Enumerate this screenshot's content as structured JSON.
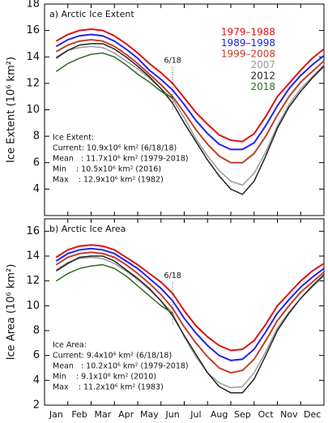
{
  "chart_data": [
    {
      "type": "line",
      "title": "a) Arctic Ice Extent",
      "y_label": "Ice Extent (10⁶ km²)",
      "ylim": [
        2,
        18
      ],
      "yticks": [
        4,
        6,
        8,
        10,
        12,
        14,
        16,
        18
      ],
      "legend": "top right",
      "marker_label": "6/18",
      "annotation": [
        "Ice Extent:",
        "Current: 10.9x10⁶ km² (6/18/18)",
        "Mean   : 11.7x10⁶ km² (1979-2018)",
        "Min    : 10.5x10⁶ km² (2016)",
        "Max    : 12.9x10⁶ km² (1982)"
      ],
      "series": [
        {
          "name": "1979–1988",
          "color": "#e01010",
          "values": [
            15.2,
            15.7,
            16.0,
            16.1,
            16.0,
            15.6,
            15.0,
            14.3,
            13.5,
            12.8,
            12.0,
            10.9,
            9.8,
            8.9,
            8.1,
            7.7,
            7.6,
            8.2,
            9.5,
            11.0,
            12.0,
            13.0,
            13.9,
            14.6
          ]
        },
        {
          "name": "1989–1998",
          "color": "#2323ee",
          "values": [
            14.8,
            15.3,
            15.6,
            15.7,
            15.6,
            15.2,
            14.6,
            13.9,
            13.0,
            12.3,
            11.5,
            10.4,
            9.2,
            8.2,
            7.4,
            7.0,
            7.0,
            7.5,
            8.8,
            10.3,
            11.6,
            12.6,
            13.4,
            14.1
          ]
        },
        {
          "name": "1999–2008",
          "color": "#c0402a",
          "values": [
            14.4,
            14.9,
            15.2,
            15.3,
            15.2,
            14.8,
            14.2,
            13.5,
            12.7,
            11.9,
            11.0,
            9.8,
            8.5,
            7.4,
            6.5,
            6.0,
            6.0,
            6.7,
            8.0,
            9.6,
            11.0,
            12.1,
            12.9,
            13.7
          ]
        },
        {
          "name": "2007",
          "color": "#9a9a9a",
          "values": [
            14.0,
            14.5,
            14.7,
            14.8,
            14.7,
            14.3,
            13.7,
            13.1,
            12.4,
            11.6,
            10.8,
            9.4,
            7.8,
            6.5,
            5.4,
            4.6,
            4.3,
            5.2,
            6.8,
            8.8,
            10.4,
            11.6,
            12.5,
            13.4
          ]
        },
        {
          "name": "2012",
          "color": "#222222",
          "values": [
            13.9,
            14.5,
            14.9,
            15.0,
            15.0,
            14.6,
            14.0,
            13.3,
            12.5,
            11.6,
            10.5,
            9.0,
            7.6,
            6.2,
            5.0,
            4.0,
            3.6,
            4.6,
            6.5,
            8.6,
            10.2,
            11.4,
            12.4,
            13.3
          ]
        },
        {
          "name": "2018",
          "color": "#2e6b1f",
          "values": [
            12.9,
            13.5,
            13.9,
            14.2,
            14.3,
            14.0,
            13.4,
            12.7,
            12.1,
            11.4,
            10.9,
            null,
            null,
            null,
            null,
            null,
            null,
            null,
            null,
            null,
            null,
            null,
            null,
            null
          ]
        }
      ]
    },
    {
      "type": "line",
      "title": "b) Arctic Ice Area",
      "y_label": "Ice Area (10⁶ km²)",
      "ylim": [
        2,
        17
      ],
      "yticks": [
        2,
        4,
        6,
        8,
        10,
        12,
        14,
        16
      ],
      "marker_label": "6/18",
      "categories": [
        "Jan",
        null,
        "Feb",
        null,
        "Mar",
        null,
        "Apr",
        null,
        "May",
        null,
        "Jun",
        null,
        "Jul",
        null,
        "Aug",
        null,
        "Sep",
        null,
        "Oct",
        null,
        "Nov",
        null,
        "Dec",
        null
      ],
      "annotation": [
        "Ice Area:",
        "Current: 9.4x10⁶ km² (6/18/18)",
        "Mean   : 10.2x10⁶ km² (1979-2018)",
        "Min    : 9.1x10⁶ km² (2010)",
        "Max    : 11.2x10⁶ km² (1983)"
      ],
      "series": [
        {
          "color": "#e01010",
          "values": [
            13.9,
            14.5,
            14.8,
            14.9,
            14.8,
            14.5,
            13.9,
            13.3,
            12.6,
            11.9,
            11.0,
            9.6,
            8.4,
            7.5,
            6.8,
            6.4,
            6.5,
            7.2,
            8.5,
            10.0,
            11.0,
            12.0,
            12.8,
            13.4
          ]
        },
        {
          "color": "#2323ee",
          "values": [
            13.6,
            14.2,
            14.5,
            14.6,
            14.5,
            14.2,
            13.6,
            13.0,
            12.2,
            11.4,
            10.4,
            9.0,
            7.8,
            6.8,
            6.0,
            5.6,
            5.7,
            6.5,
            7.9,
            9.4,
            10.5,
            11.5,
            12.3,
            13.0
          ]
        },
        {
          "color": "#c0402a",
          "values": [
            13.3,
            13.9,
            14.2,
            14.3,
            14.2,
            13.9,
            13.3,
            12.6,
            11.8,
            10.9,
            9.8,
            8.3,
            7.0,
            5.9,
            5.0,
            4.6,
            4.8,
            5.7,
            7.2,
            8.8,
            10.0,
            11.1,
            11.9,
            12.7
          ]
        },
        {
          "color": "#9a9a9a",
          "values": [
            12.9,
            13.5,
            13.8,
            13.9,
            13.8,
            13.4,
            12.8,
            12.1,
            11.3,
            10.4,
            9.4,
            7.5,
            5.9,
            4.6,
            3.8,
            3.4,
            3.5,
            4.6,
            6.3,
            8.2,
            9.5,
            10.6,
            11.5,
            12.4
          ]
        },
        {
          "color": "#222222",
          "values": [
            12.8,
            13.4,
            13.9,
            14.0,
            14.0,
            13.6,
            12.9,
            12.2,
            11.4,
            10.4,
            9.2,
            7.6,
            6.1,
            4.6,
            3.5,
            3.0,
            3.0,
            4.1,
            6.0,
            8.0,
            9.4,
            10.6,
            11.6,
            12.5
          ]
        },
        {
          "color": "#2e6b1f",
          "values": [
            12.0,
            12.6,
            13.0,
            13.2,
            13.3,
            13.0,
            12.4,
            11.6,
            10.8,
            10.0,
            9.4,
            null,
            null,
            null,
            null,
            null,
            null,
            null,
            null,
            null,
            null,
            null,
            null,
            null
          ]
        }
      ]
    }
  ]
}
